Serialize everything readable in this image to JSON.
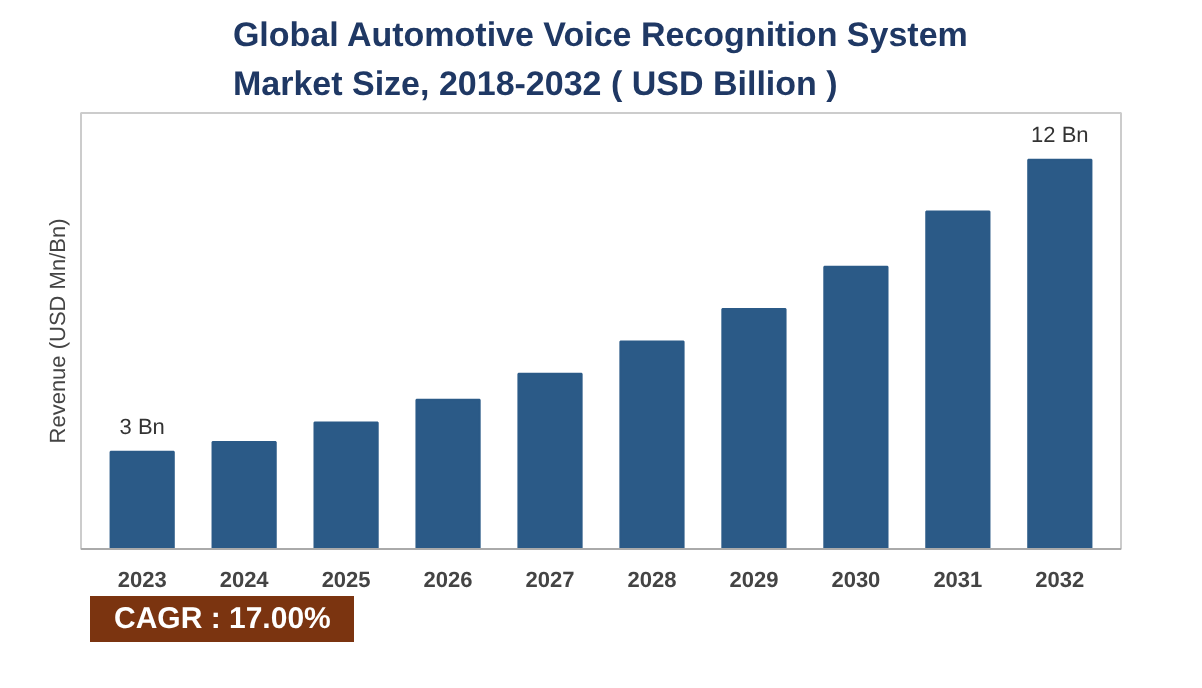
{
  "chart_data": {
    "type": "bar",
    "title": "Global Automotive Voice Recognition System\nMarket Size, 2018-2032 ( USD Billion )",
    "ylabel": "Revenue (USD Mn/Bn)",
    "categories": [
      "2023",
      "2024",
      "2025",
      "2026",
      "2027",
      "2028",
      "2029",
      "2030",
      "2031",
      "2032"
    ],
    "values": [
      3,
      3.3,
      3.9,
      4.6,
      5.4,
      6.4,
      7.4,
      8.7,
      10.4,
      12
    ],
    "value_labels": [
      "3 Bn",
      null,
      null,
      null,
      null,
      null,
      null,
      null,
      null,
      "12 Bn"
    ],
    "color": "#2b5a87",
    "grid": false,
    "annotations": [
      "CAGR : 17.00%"
    ]
  }
}
